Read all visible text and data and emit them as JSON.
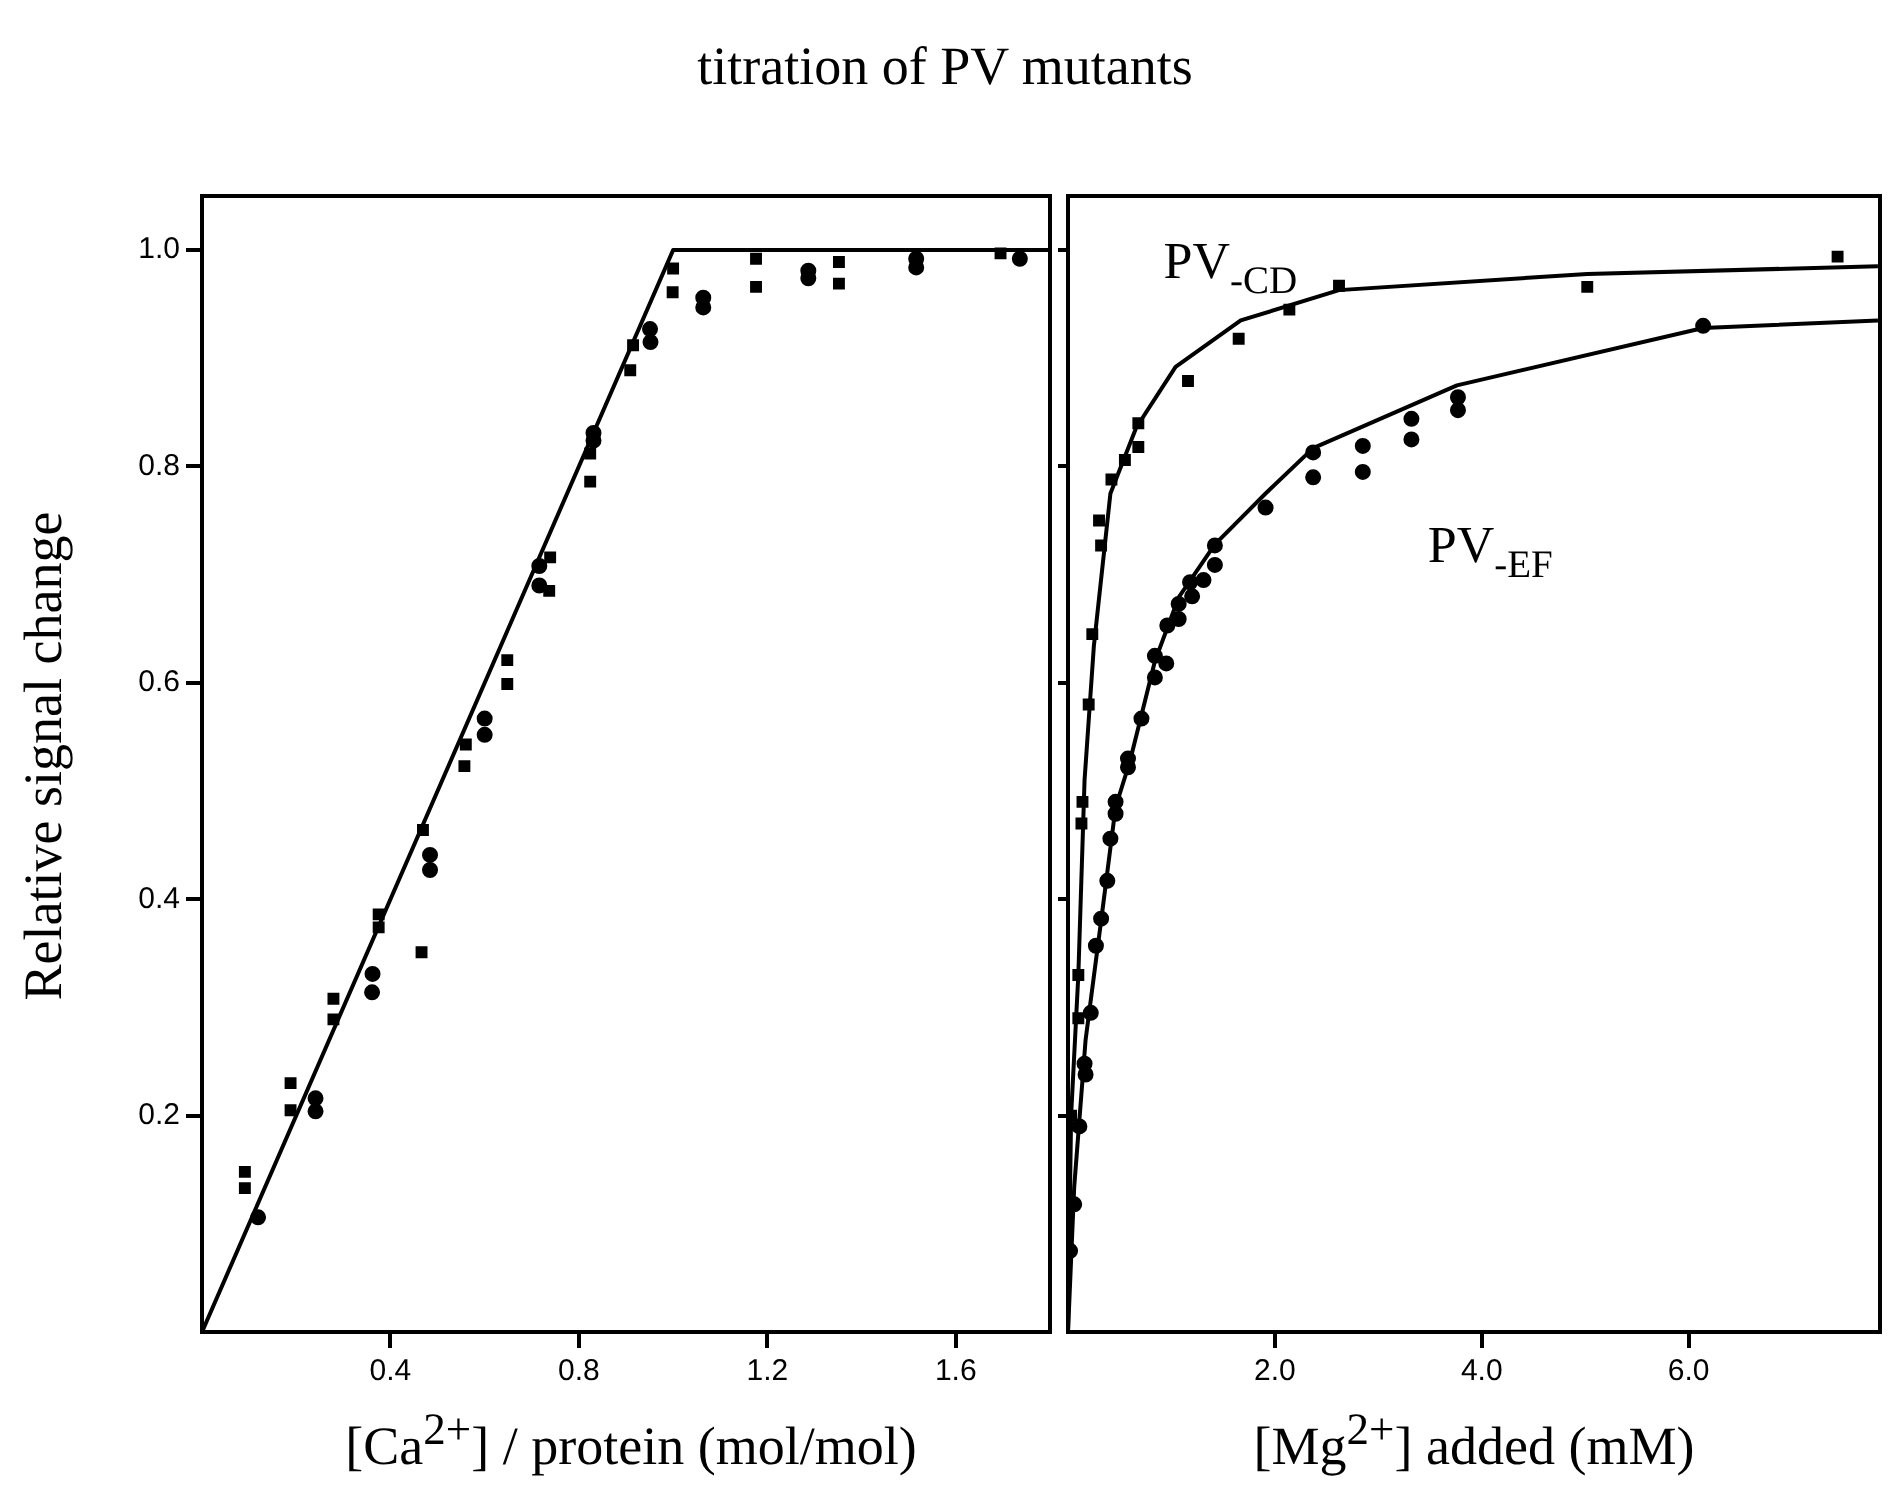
{
  "chart_data": [
    {
      "type": "scatter",
      "title": "titration of PV mutants",
      "xlabel": "[Ca$^{2+}$] / protein (mol/mol)",
      "ylabel": "Relative signal change",
      "xlim": [
        0,
        1.8
      ],
      "xticks": [
        0.4,
        0.8,
        1.2,
        1.6
      ],
      "ylim": [
        0,
        1.05
      ],
      "yticks": [
        0.2,
        0.4,
        0.6,
        {
          "value": 0.8,
          "label": "0.8"
        },
        {
          "value": 1,
          "label": "1.0"
        }
      ],
      "grid": false,
      "legend": false,
      "series": [
        {
          "type": "line",
          "marker": "none",
          "color": "#000000",
          "x": [
            0,
            1,
            1.8
          ],
          "values": [
            0,
            1,
            1
          ]
        },
        {
          "marker": "square",
          "color": "#000000",
          "x": [
            0.091,
            0.188,
            0.279,
            0.375,
            0.469,
            0.56,
            0.648,
            0.739,
            0.824,
            1.0,
            1.176,
            1.352
          ],
          "values": [
            0.148,
            0.23,
            0.308,
            0.386,
            0.464,
            0.543,
            0.621,
            0.716,
            0.812,
            0.983,
            0.992,
            0.989
          ]
        },
        {
          "marker": "square",
          "color": "#000000",
          "x": [
            0.091,
            0.188,
            0.279,
            0.375,
            0.466,
            0.557,
            0.648,
            0.737,
            0.824,
            0.909,
            0.915,
            0.999,
            1.176,
            1.352,
            1.695
          ],
          "values": [
            0.133,
            0.205,
            0.289,
            0.374,
            0.351,
            0.523,
            0.599,
            0.685,
            0.786,
            0.889,
            0.912,
            0.961,
            0.966,
            0.969,
            0.997
          ]
        },
        {
          "marker": "circle",
          "color": "#000000",
          "x": [
            0.241,
            0.362,
            0.484,
            0.6,
            0.716,
            0.831,
            0.951,
            1.064,
            1.287,
            1.516
          ],
          "values": [
            0.216,
            0.331,
            0.441,
            0.567,
            0.708,
            0.831,
            0.927,
            0.956,
            0.981,
            0.992
          ]
        },
        {
          "marker": "circle",
          "color": "#000000",
          "x": [
            0.119,
            0.241,
            0.361,
            0.484,
            0.6,
            0.716,
            0.831,
            0.952,
            1.064,
            1.287,
            1.516,
            1.736
          ],
          "values": [
            0.106,
            0.204,
            0.314,
            0.427,
            0.552,
            0.69,
            0.824,
            0.915,
            0.947,
            0.974,
            0.984,
            0.992
          ]
        }
      ]
    },
    {
      "type": "scatter",
      "xlabel": "[Mg$^{2+}$] added (mM)",
      "xlim": [
        0,
        7.85
      ],
      "xticks": [
        {
          "value": 2,
          "label": "2.0"
        },
        {
          "value": 4,
          "label": "4.0"
        },
        {
          "value": 6,
          "label": "6.0"
        }
      ],
      "ylim": [
        0,
        1.05
      ],
      "yticks": [
        0.2,
        0.4,
        0.6,
        0.8,
        1
      ],
      "tick_labels": "x",
      "grid": false,
      "legend": false,
      "annotations": [
        "PV$_{-CD}$",
        "PV$_{-EF}$"
      ],
      "series": [
        {
          "type": "line",
          "marker": "none",
          "color": "#000000",
          "x": [
            0,
            0.03,
            0.1,
            0.16,
            0.25,
            0.41,
            0.66,
            1.04,
            1.67,
            2.62,
            5.02,
            7.83
          ],
          "values": [
            0,
            0.2,
            0.33,
            0.51,
            0.634,
            0.775,
            0.836,
            0.892,
            0.935,
            0.963,
            0.978,
            0.985
          ]
        },
        {
          "type": "line",
          "marker": "none",
          "color": "#000000",
          "x": [
            0,
            0.06,
            0.17,
            0.32,
            0.46,
            0.6,
            0.84,
            1.07,
            1.42,
            1.91,
            2.37,
            3.76,
            6.14,
            7.83
          ],
          "values": [
            0,
            0.134,
            0.27,
            0.38,
            0.485,
            0.528,
            0.62,
            0.679,
            0.728,
            0.775,
            0.817,
            0.875,
            0.928,
            0.935
          ]
        },
        {
          "marker": "square",
          "color": "#000000",
          "x": [
            0.1,
            0.14,
            0.2,
            0.3,
            0.68
          ],
          "values": [
            0.29,
            0.49,
            0.58,
            0.75,
            0.84
          ]
        },
        {
          "marker": "square",
          "color": "#000000",
          "x": [
            0.03,
            0.1,
            0.13,
            0.235,
            0.32,
            0.42,
            0.55,
            0.68,
            1.16,
            1.65,
            2.14,
            2.62,
            5.02,
            7.44
          ],
          "values": [
            0.2,
            0.33,
            0.47,
            0.645,
            0.727,
            0.788,
            0.806,
            0.818,
            0.879,
            0.918,
            0.945,
            0.967,
            0.966,
            0.994
          ]
        },
        {
          "marker": "circle",
          "color": "#000000",
          "x": [
            0.17,
            0.27,
            0.41,
            0.46,
            0.58,
            0.71,
            0.84,
            0.96,
            1.07,
            1.18,
            1.42,
            2.37,
            2.85,
            3.32,
            3.77
          ],
          "values": [
            0.238,
            0.357,
            0.456,
            0.49,
            0.53,
            0.567,
            0.625,
            0.653,
            0.673,
            0.693,
            0.727,
            0.813,
            0.819,
            0.844,
            0.864
          ]
        },
        {
          "marker": "circle",
          "color": "#000000",
          "x": [
            0.02,
            0.06,
            0.11,
            0.16,
            0.22,
            0.32,
            0.38,
            0.46,
            0.58,
            0.84,
            0.95,
            1.07,
            1.2,
            1.31,
            1.42,
            1.91,
            2.37,
            2.85,
            3.32,
            3.77,
            6.14
          ],
          "values": [
            0.075,
            0.118,
            0.19,
            0.248,
            0.295,
            0.382,
            0.417,
            0.479,
            0.522,
            0.605,
            0.618,
            0.659,
            0.68,
            0.695,
            0.709,
            0.762,
            0.79,
            0.795,
            0.825,
            0.852,
            0.93
          ]
        }
      ]
    }
  ]
}
